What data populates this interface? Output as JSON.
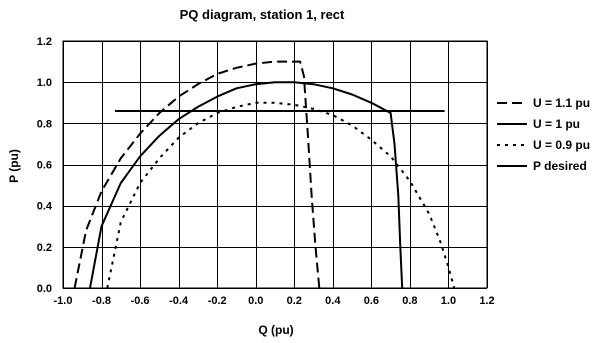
{
  "chart_data": {
    "type": "line",
    "title": "PQ diagram, station 1, rect",
    "xlabel": "Q (pu)",
    "ylabel": "P (pu)",
    "xlim": [
      -1.0,
      1.2
    ],
    "ylim": [
      0.0,
      1.2
    ],
    "x_ticks": [
      -1.0,
      -0.8,
      -0.6,
      -0.4,
      -0.2,
      0.0,
      0.2,
      0.4,
      0.6,
      0.8,
      1.0,
      1.2
    ],
    "x_tick_labels": [
      "-1.0",
      "-0.8",
      "-0.6",
      "-0.4",
      "-0.2",
      "0.0",
      "0.2",
      "0.4",
      "0.6",
      "0.8",
      "1.0",
      "1.2"
    ],
    "y_ticks": [
      0.0,
      0.2,
      0.4,
      0.6,
      0.8,
      1.0,
      1.2
    ],
    "y_tick_labels": [
      "0.0",
      "0.2",
      "0.4",
      "0.6",
      "0.8",
      "1.0",
      "1.2"
    ],
    "grid": true,
    "legend_position": "right",
    "series": [
      {
        "name": "U = 1.1 pu",
        "line_style": "dashed",
        "color": "#000000",
        "x": [
          -0.94,
          -0.88,
          -0.8,
          -0.7,
          -0.6,
          -0.5,
          -0.4,
          -0.3,
          -0.2,
          -0.1,
          0.0,
          0.1,
          0.23,
          0.25,
          0.27,
          0.29,
          0.31,
          0.33
        ],
        "y": [
          0.0,
          0.28,
          0.47,
          0.63,
          0.75,
          0.85,
          0.93,
          0.99,
          1.04,
          1.07,
          1.09,
          1.1,
          1.1,
          1.03,
          0.75,
          0.45,
          0.2,
          0.0
        ]
      },
      {
        "name": "U = 1 pu",
        "line_style": "solid",
        "color": "#000000",
        "x": [
          -0.86,
          -0.8,
          -0.7,
          -0.6,
          -0.5,
          -0.4,
          -0.3,
          -0.2,
          -0.1,
          0.0,
          0.1,
          0.2,
          0.3,
          0.4,
          0.5,
          0.6,
          0.7,
          0.72,
          0.74,
          0.75,
          0.76
        ],
        "y": [
          0.0,
          0.3,
          0.51,
          0.64,
          0.74,
          0.82,
          0.88,
          0.93,
          0.97,
          0.99,
          1.0,
          1.0,
          0.99,
          0.97,
          0.94,
          0.9,
          0.85,
          0.7,
          0.45,
          0.2,
          0.0
        ]
      },
      {
        "name": "U = 0.9 pu",
        "line_style": "dotted",
        "color": "#000000",
        "x": [
          -0.77,
          -0.7,
          -0.6,
          -0.5,
          -0.4,
          -0.3,
          -0.2,
          -0.1,
          0.0,
          0.1,
          0.2,
          0.3,
          0.4,
          0.5,
          0.6,
          0.7,
          0.8,
          0.9,
          0.96,
          1.0,
          1.03
        ],
        "y": [
          0.0,
          0.32,
          0.51,
          0.63,
          0.73,
          0.8,
          0.85,
          0.88,
          0.9,
          0.9,
          0.89,
          0.87,
          0.84,
          0.79,
          0.72,
          0.64,
          0.52,
          0.36,
          0.22,
          0.1,
          0.0
        ]
      },
      {
        "name": "P desired",
        "line_style": "solid",
        "color": "#000000",
        "x": [
          -0.73,
          0.98
        ],
        "y": [
          0.86,
          0.86
        ]
      }
    ]
  }
}
